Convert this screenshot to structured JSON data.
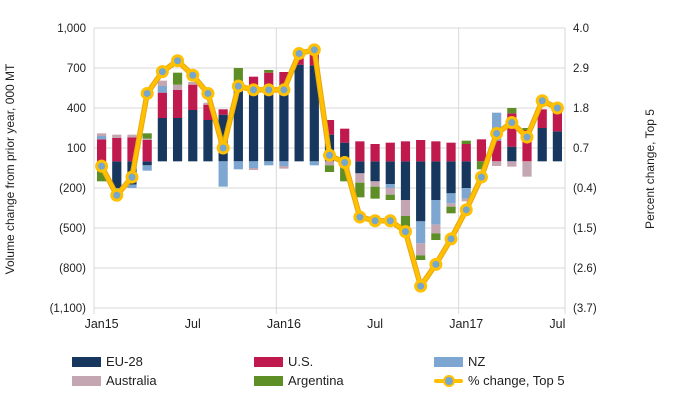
{
  "chart_data": {
    "type": "bar",
    "subtype": "stacked-bar-with-line-combo",
    "title": "",
    "categories": [
      "Jan-15",
      "Feb-15",
      "Mar-15",
      "Apr-15",
      "May-15",
      "Jun-15",
      "Jul-15",
      "Aug-15",
      "Sep-15",
      "Oct-15",
      "Nov-15",
      "Dec-15",
      "Jan-16",
      "Feb-16",
      "Mar-16",
      "Apr-16",
      "May-16",
      "Jun-16",
      "Jul-16",
      "Aug-16",
      "Sep-16",
      "Oct-16",
      "Nov-16",
      "Dec-16",
      "Jan-17",
      "Feb-17",
      "Mar-17",
      "Apr-17",
      "May-17",
      "Jun-17",
      "Jul-17"
    ],
    "series": [
      {
        "name": "EU-28",
        "color": "#17375E",
        "values": [
          0,
          -200,
          -175,
          -30,
          325,
          325,
          385,
          310,
          350,
          560,
          560,
          575,
          580,
          725,
          720,
          200,
          140,
          -90,
          -150,
          -170,
          -290,
          -450,
          -290,
          -240,
          -200,
          0,
          0,
          110,
          0,
          250,
          225
        ]
      },
      {
        "name": "U.S.",
        "color": "#C0194E",
        "values": [
          165,
          175,
          180,
          160,
          190,
          210,
          190,
          115,
          40,
          25,
          75,
          90,
          90,
          90,
          90,
          110,
          105,
          150,
          130,
          140,
          150,
          160,
          150,
          140,
          130,
          165,
          155,
          250,
          235,
          140,
          160
        ]
      },
      {
        "name": "NZ",
        "color": "#7DA7D0",
        "values": [
          25,
          -25,
          -25,
          -40,
          50,
          0,
          0,
          0,
          -190,
          -60,
          -50,
          -30,
          -35,
          0,
          -30,
          0,
          0,
          0,
          0,
          -30,
          0,
          -165,
          -185,
          -75,
          -80,
          0,
          210,
          0,
          0,
          0,
          0
        ]
      },
      {
        "name": "Australia",
        "color": "#C4A6B2",
        "values": [
          20,
          25,
          20,
          10,
          40,
          40,
          20,
          15,
          0,
          15,
          -15,
          0,
          -20,
          25,
          0,
          -30,
          0,
          -70,
          -40,
          -50,
          -120,
          -90,
          -65,
          -25,
          -20,
          0,
          -35,
          -40,
          -115,
          0,
          0
        ]
      },
      {
        "name": "Argentina",
        "color": "#5E8F27",
        "values": [
          -150,
          0,
          0,
          40,
          0,
          90,
          0,
          0,
          0,
          100,
          0,
          20,
          0,
          0,
          0,
          -50,
          -150,
          -110,
          -90,
          -40,
          -110,
          -35,
          -50,
          -50,
          25,
          -60,
          0,
          40,
          15,
          0,
          15
        ]
      }
    ],
    "line_series": {
      "name": "% change, Top 5",
      "color": "#FFC000",
      "edge_color": "#E7A614",
      "marker_fill": "#74A6CF",
      "values": [
        0.2,
        -0.6,
        -0.1,
        2.2,
        2.8,
        3.1,
        2.7,
        2.2,
        0.7,
        2.4,
        2.3,
        2.3,
        2.3,
        3.3,
        3.4,
        0.5,
        0.3,
        -1.2,
        -1.3,
        -1.3,
        -1.6,
        -3.1,
        -2.5,
        -1.8,
        -1.0,
        -0.1,
        1.1,
        1.4,
        1.0,
        2.0,
        1.8
      ]
    },
    "left_axis": {
      "title": "Volume change from prior year, 000 MT",
      "tick_values": [
        1000,
        700,
        400,
        100,
        -200,
        -500,
        -800,
        -1100
      ],
      "tick_labels": [
        "1,000",
        "700",
        "400",
        "100",
        "(200)",
        "(500)",
        "(800)",
        "(1,100)"
      ],
      "ylim": [
        -1100,
        1000
      ]
    },
    "right_axis": {
      "title": "Percent change, Top 5",
      "tick_values": [
        4.0,
        2.9,
        1.8,
        0.7,
        -0.4,
        -1.5,
        -2.6,
        -3.7
      ],
      "tick_labels": [
        "4.0",
        "2.9",
        "1.8",
        "0.7",
        "(0.4)",
        "(1.5)",
        "(2.6)",
        "(3.7)"
      ],
      "ylim": [
        -3.7,
        4.0
      ]
    },
    "x_axis": {
      "labels": [
        {
          "index": 0,
          "text": "Jan15"
        },
        {
          "index": 6,
          "text": "Jul"
        },
        {
          "index": 12,
          "text": "Jan16"
        },
        {
          "index": 18,
          "text": "Jul"
        },
        {
          "index": 24,
          "text": "Jan17"
        },
        {
          "index": 30,
          "text": "Jul"
        }
      ],
      "year_divider_before_index": [
        12,
        24
      ]
    },
    "grid": true,
    "gridline_color": "#D9D9D9",
    "background": "#FFFFFF",
    "legend_position": "bottom"
  },
  "legend": {
    "items": [
      {
        "label": "EU-28",
        "type": "swatch",
        "color": "#17375E",
        "col": 0,
        "row": 0
      },
      {
        "label": "U.S.",
        "type": "swatch",
        "color": "#C0194E",
        "col": 1,
        "row": 0
      },
      {
        "label": "NZ",
        "type": "swatch",
        "color": "#7DA7D0",
        "col": 2,
        "row": 0
      },
      {
        "label": "Australia",
        "type": "swatch",
        "color": "#C4A6B2",
        "col": 0,
        "row": 1
      },
      {
        "label": "Argentina",
        "type": "swatch",
        "color": "#5E8F27",
        "col": 1,
        "row": 1
      },
      {
        "label": "% change, Top 5",
        "type": "line-marker",
        "color": "#FFC000",
        "marker_fill": "#74A6CF",
        "col": 2,
        "row": 1
      }
    ]
  }
}
